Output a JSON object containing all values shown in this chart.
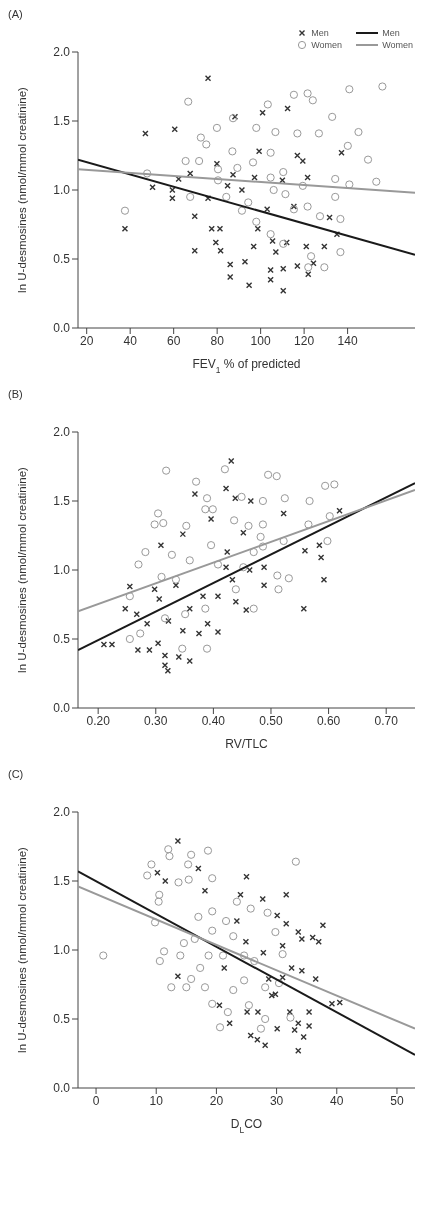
{
  "chart_data": [
    {
      "type": "scatter",
      "title": "(A)",
      "xlabel": "FEV$_{1}$ % of predicted",
      "ylabel": "ln U-desmosines (nmol/mmol creatinine)",
      "xlim": [
        16,
        171
      ],
      "xticks": [
        20,
        40,
        60,
        80,
        100,
        120,
        140
      ],
      "ylim": [
        0,
        2
      ],
      "yticks": [
        {
          "value": 0,
          "label": "0.0"
        },
        {
          "value": 0.5,
          "label": "0.5"
        },
        {
          "value": 1,
          "label": "1.0"
        },
        {
          "value": 1.5,
          "label": "1.5"
        },
        {
          "value": 2,
          "label": "2.0"
        }
      ],
      "legend": "top right",
      "series": [
        {
          "name": "Men",
          "type": "scatter",
          "marker": "cross",
          "color": "#333333",
          "x": [
            75.8,
            47,
            60.5,
            37.6,
            50.3,
            62.3,
            59.4,
            59.4,
            69.7,
            69.7,
            77.5,
            81.3,
            79.4,
            81.6,
            86,
            86,
            92.8,
            94.7,
            100.9,
            112.4,
            88.2,
            99.3,
            104.6,
            110.4,
            104.6,
            110.4,
            116.9,
            121.9,
            124.3,
            129.3,
            131.7,
            135.1,
            137.2,
            119.4,
            121.6,
            116.9,
            110,
            97.2,
            75.8,
            84.8,
            87.3,
            98.7,
            105.5,
            112,
            121,
            107,
            96.8,
            67.6,
            79.9,
            91.4,
            115.3,
            103
          ],
          "values": [
            1.81,
            1.41,
            1.44,
            0.72,
            1.02,
            1.08,
            1.0,
            0.94,
            0.81,
            0.56,
            0.72,
            0.72,
            0.62,
            0.56,
            0.46,
            0.37,
            0.48,
            0.31,
            1.56,
            1.59,
            1.53,
            1.28,
            0.42,
            0.27,
            0.35,
            0.43,
            0.45,
            0.39,
            0.47,
            0.59,
            0.8,
            0.68,
            1.27,
            1.21,
            1.09,
            1.25,
            1.07,
            1.09,
            0.94,
            1.03,
            1.11,
            0.72,
            0.63,
            0.62,
            0.59,
            0.55,
            0.59,
            1.12,
            1.19,
            1.0,
            0.88,
            0.86
          ]
        },
        {
          "name": "Women",
          "type": "scatter",
          "marker": "circle",
          "color": "#999999",
          "x": [
            37.6,
            47.8,
            66.7,
            65.5,
            71.7,
            75,
            72.5,
            79.9,
            87.3,
            98,
            103.3,
            115.3,
            121.6,
            124,
            132.9,
            140.8,
            156,
            145,
            140.1,
            149.4,
            153.2,
            140.8,
            134.3,
            134.3,
            136.7,
            136.7,
            129.3,
            121.9,
            123.2,
            119.4,
            110.4,
            106.8,
            116.9,
            126.8,
            104.6,
            96.5,
            89.3,
            80.4,
            84.2,
            91.4,
            98,
            104.6,
            110.4,
            115.3,
            121.6,
            127.3,
            106,
            111.4,
            104.6,
            94.3,
            67.6,
            87,
            80.4
          ],
          "values": [
            0.85,
            1.12,
            1.64,
            1.21,
            1.21,
            1.33,
            1.38,
            1.45,
            1.52,
            1.45,
            1.62,
            1.69,
            1.7,
            1.65,
            1.53,
            1.73,
            1.75,
            1.42,
            1.32,
            1.22,
            1.06,
            1.04,
            1.08,
            0.95,
            0.79,
            0.55,
            0.44,
            0.44,
            0.52,
            1.03,
            1.13,
            1.42,
            1.41,
            1.41,
            1.27,
            1.2,
            1.16,
            1.07,
            0.95,
            0.85,
            0.77,
            0.68,
            0.61,
            0.86,
            0.88,
            0.81,
            1.0,
            0.97,
            1.09,
            0.91,
            0.95,
            1.28,
            1.15
          ]
        },
        {
          "name": "Men",
          "type": "line",
          "marker": "none",
          "color": "#1a1a1a",
          "x": [
            16,
            171
          ],
          "values": [
            1.22,
            0.53
          ]
        },
        {
          "name": "Women",
          "type": "line",
          "marker": "none",
          "color": "#999999",
          "x": [
            16,
            171
          ],
          "values": [
            1.15,
            0.98
          ]
        }
      ]
    },
    {
      "type": "scatter",
      "title": "(B)",
      "xlabel": "RV/TLC",
      "ylabel": "ln U-desmosines (nmol/mmol creatinine)",
      "xlim": [
        0.165,
        0.75
      ],
      "xticks": [
        {
          "value": 0.2,
          "label": "0.20"
        },
        {
          "value": 0.3,
          "label": "0.30"
        },
        {
          "value": 0.4,
          "label": "0.40"
        },
        {
          "value": 0.5,
          "label": "0.50"
        },
        {
          "value": 0.6,
          "label": "0.60"
        },
        {
          "value": 0.7,
          "label": "0.70"
        }
      ],
      "ylim": [
        0,
        2
      ],
      "yticks": [
        {
          "value": 0,
          "label": "0.0"
        },
        {
          "value": 0.5,
          "label": "0.5"
        },
        {
          "value": 1,
          "label": "1.0"
        },
        {
          "value": 1.5,
          "label": "1.5"
        },
        {
          "value": 2,
          "label": "2.0"
        }
      ],
      "series": [
        {
          "type": "scatter",
          "marker": "cross",
          "color": "#333333",
          "x": [
            0.431,
            0.21,
            0.224,
            0.255,
            0.247,
            0.267,
            0.269,
            0.289,
            0.304,
            0.316,
            0.316,
            0.321,
            0.34,
            0.359,
            0.368,
            0.422,
            0.438,
            0.465,
            0.396,
            0.347,
            0.309,
            0.335,
            0.322,
            0.347,
            0.375,
            0.408,
            0.39,
            0.408,
            0.439,
            0.457,
            0.488,
            0.488,
            0.463,
            0.433,
            0.424,
            0.452,
            0.422,
            0.619,
            0.584,
            0.587,
            0.592,
            0.557,
            0.559,
            0.522,
            0.382,
            0.359,
            0.298,
            0.285,
            0.306
          ],
          "values": [
            1.79,
            0.46,
            0.46,
            0.88,
            0.72,
            0.68,
            0.42,
            0.42,
            0.47,
            0.38,
            0.31,
            0.27,
            0.37,
            0.34,
            1.55,
            1.59,
            1.52,
            1.5,
            1.37,
            1.26,
            1.18,
            0.89,
            0.63,
            0.56,
            0.54,
            0.55,
            0.61,
            0.81,
            0.77,
            0.71,
            0.89,
            1.02,
            1.0,
            0.93,
            1.13,
            1.27,
            1.02,
            1.43,
            1.18,
            1.09,
            0.93,
            0.72,
            1.14,
            1.41,
            0.81,
            0.72,
            0.86,
            0.61,
            0.79
          ]
        },
        {
          "type": "scatter",
          "marker": "circle",
          "color": "#999999",
          "x": [
            0.318,
            0.42,
            0.37,
            0.495,
            0.51,
            0.594,
            0.61,
            0.567,
            0.524,
            0.486,
            0.449,
            0.389,
            0.304,
            0.298,
            0.313,
            0.353,
            0.386,
            0.399,
            0.436,
            0.461,
            0.486,
            0.565,
            0.602,
            0.598,
            0.522,
            0.486,
            0.282,
            0.27,
            0.255,
            0.255,
            0.273,
            0.346,
            0.389,
            0.47,
            0.513,
            0.511,
            0.531,
            0.316,
            0.335,
            0.359,
            0.396,
            0.408,
            0.439,
            0.386,
            0.351,
            0.31,
            0.328,
            0.452,
            0.47,
            0.482
          ],
          "values": [
            1.72,
            1.73,
            1.64,
            1.69,
            1.68,
            1.61,
            1.62,
            1.5,
            1.52,
            1.5,
            1.53,
            1.52,
            1.41,
            1.33,
            1.34,
            1.32,
            1.44,
            1.44,
            1.36,
            1.32,
            1.33,
            1.33,
            1.39,
            1.21,
            1.21,
            1.17,
            1.13,
            1.04,
            0.81,
            0.5,
            0.54,
            0.43,
            0.43,
            0.72,
            0.86,
            0.96,
            0.94,
            0.65,
            0.93,
            1.07,
            1.18,
            1.04,
            0.86,
            0.72,
            0.68,
            0.95,
            1.11,
            1.02,
            1.13,
            1.24
          ]
        },
        {
          "type": "line",
          "marker": "none",
          "color": "#1a1a1a",
          "x": [
            0.165,
            0.75
          ],
          "values": [
            0.42,
            1.63
          ]
        },
        {
          "type": "line",
          "marker": "none",
          "color": "#999999",
          "x": [
            0.165,
            0.75
          ],
          "values": [
            0.7,
            1.58
          ]
        }
      ]
    },
    {
      "type": "scatter",
      "title": "(C)",
      "xlabel": "D$_{L}$CO",
      "ylabel": "ln U-desmosines (nmol/mmol creatinine)",
      "xlim": [
        -3,
        53
      ],
      "xticks": [
        0,
        10,
        20,
        30,
        40,
        50
      ],
      "ylim": [
        0,
        2
      ],
      "yticks": [
        {
          "value": 0,
          "label": "0.0"
        },
        {
          "value": 0.5,
          "label": "0.5"
        },
        {
          "value": 1,
          "label": "1.0"
        },
        {
          "value": 1.5,
          "label": "1.5"
        },
        {
          "value": 2,
          "label": "2.0"
        }
      ],
      "series": [
        {
          "type": "scatter",
          "marker": "cross",
          "color": "#333333",
          "x": [
            13.6,
            10.2,
            11.5,
            17,
            25,
            18.1,
            24,
            27.7,
            31.6,
            30.1,
            31.6,
            37.7,
            33.6,
            34.2,
            36,
            37,
            24.9,
            23.4,
            15.5,
            13.6,
            20.5,
            22.2,
            25.7,
            26.8,
            28.1,
            30.1,
            32.2,
            33.6,
            33.6,
            34.5,
            33,
            35.4,
            35.4,
            39.2,
            40.5,
            36.5,
            34.2,
            32.5,
            31,
            29.8,
            28.7,
            27.8,
            26.9,
            25.1,
            21.3,
            31,
            29.2
          ],
          "values": [
            1.79,
            1.56,
            1.5,
            1.59,
            1.53,
            1.43,
            1.4,
            1.37,
            1.4,
            1.25,
            1.19,
            1.18,
            1.13,
            1.08,
            1.09,
            1.06,
            1.06,
            1.21,
            null,
            0.81,
            0.6,
            0.47,
            0.38,
            0.35,
            0.31,
            0.43,
            0.55,
            0.47,
            0.27,
            0.37,
            0.42,
            0.45,
            0.55,
            0.61,
            0.62,
            0.79,
            0.85,
            0.87,
            0.8,
            0.68,
            0.79,
            0.98,
            0.55,
            0.55,
            0.87,
            1.03,
            0.67
          ]
        },
        {
          "type": "scatter",
          "marker": "circle",
          "color": "#999999",
          "x": [
            1.2,
            8.5,
            9.2,
            12,
            12.2,
            15.8,
            15.3,
            18.6,
            33.2,
            10.5,
            10.4,
            9.8,
            11.3,
            10.6,
            12.5,
            15,
            13.7,
            15.4,
            19.3,
            23.4,
            25.7,
            28.5,
            29.8,
            31,
            30.4,
            32.3,
            27.4,
            20.6,
            21.9,
            25.4,
            28.1,
            19.3,
            18.1,
            15.8,
            17.3,
            18.7,
            21.1,
            22.8,
            21.6,
            19.3,
            17,
            16.4,
            19.3,
            24.6,
            26.3,
            24.6,
            22.8,
            28.1,
            14,
            14.6
          ],
          "values": [
            0.96,
            1.54,
            1.62,
            1.73,
            1.68,
            1.69,
            1.62,
            1.72,
            1.64,
            1.4,
            1.35,
            1.2,
            0.99,
            0.92,
            0.73,
            0.73,
            1.49,
            1.51,
            1.52,
            1.35,
            1.3,
            1.27,
            1.13,
            0.97,
            0.76,
            0.51,
            0.43,
            0.44,
            0.55,
            0.6,
            0.5,
            0.61,
            0.73,
            0.79,
            0.87,
            0.96,
            0.96,
            1.1,
            1.21,
            1.28,
            1.24,
            1.08,
            1.14,
            0.96,
            0.92,
            0.78,
            0.71,
            0.73,
            0.96,
            1.05
          ]
        },
        {
          "type": "line",
          "marker": "none",
          "color": "#1a1a1a",
          "x": [
            -3,
            53
          ],
          "values": [
            1.57,
            0.24
          ]
        },
        {
          "type": "line",
          "marker": "none",
          "color": "#999999",
          "x": [
            -3,
            53
          ],
          "values": [
            1.46,
            0.43
          ]
        }
      ]
    }
  ]
}
